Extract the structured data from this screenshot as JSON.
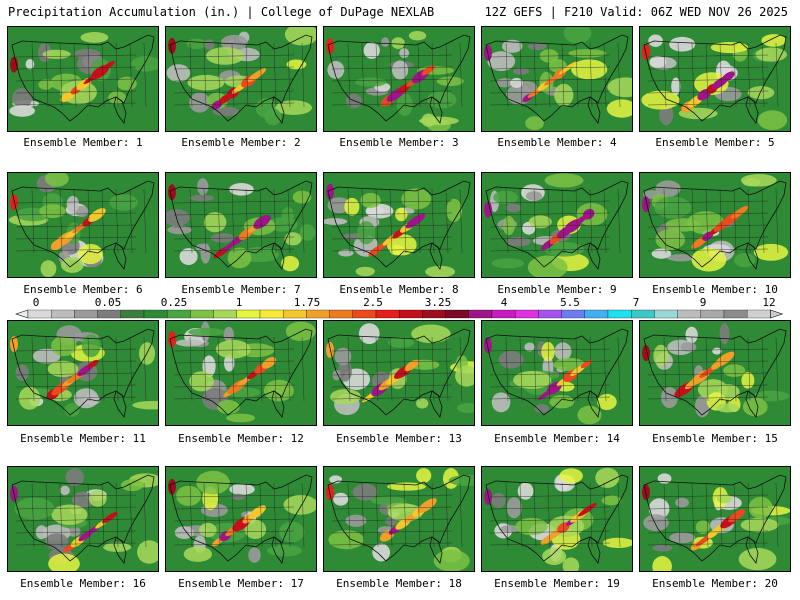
{
  "header": {
    "title": "Precipitation Accumulation (in.) | College of DuPage NEXLAB",
    "run_info": "12Z GEFS | F210 Valid: 06Z WED NOV 26 2025"
  },
  "members": [
    {
      "label": "Ensemble Member: 1"
    },
    {
      "label": "Ensemble Member: 2"
    },
    {
      "label": "Ensemble Member: 3"
    },
    {
      "label": "Ensemble Member: 4"
    },
    {
      "label": "Ensemble Member: 5"
    },
    {
      "label": "Ensemble Member: 6"
    },
    {
      "label": "Ensemble Member: 7"
    },
    {
      "label": "Ensemble Member: 8"
    },
    {
      "label": "Ensemble Member: 9"
    },
    {
      "label": "Ensemble Member: 10"
    },
    {
      "label": "Ensemble Member: 11"
    },
    {
      "label": "Ensemble Member: 12"
    },
    {
      "label": "Ensemble Member: 13"
    },
    {
      "label": "Ensemble Member: 14"
    },
    {
      "label": "Ensemble Member: 15"
    },
    {
      "label": "Ensemble Member: 16"
    },
    {
      "label": "Ensemble Member: 17"
    },
    {
      "label": "Ensemble Member: 18"
    },
    {
      "label": "Ensemble Member: 19"
    },
    {
      "label": "Ensemble Member: 20"
    }
  ],
  "colorbar": {
    "tick_labels": [
      "0",
      "0.05",
      "0.25",
      "1",
      "1.75",
      "2.5",
      "3.25",
      "4",
      "5.5",
      "7",
      "9",
      "12"
    ],
    "colors": [
      "#d9d9d9",
      "#bdbdbd",
      "#9a9a9a",
      "#7c7c7c",
      "#3c7f3c",
      "#2f8a36",
      "#49a541",
      "#7cc244",
      "#a8d85a",
      "#e6f542",
      "#f6e93a",
      "#f4c82c",
      "#f0a02a",
      "#ee7a22",
      "#ea4a1e",
      "#e4201c",
      "#c4101a",
      "#9c0c1c",
      "#7a0a26",
      "#a0148a",
      "#c81cc0",
      "#e030e0",
      "#a850f0",
      "#6c7cf0",
      "#40b0f0",
      "#20e0f0",
      "#3cc8c8",
      "#9ad8d8",
      "#bcbcbc",
      "#a8a8a8",
      "#8c8c8c",
      "#d0d0d0"
    ]
  }
}
